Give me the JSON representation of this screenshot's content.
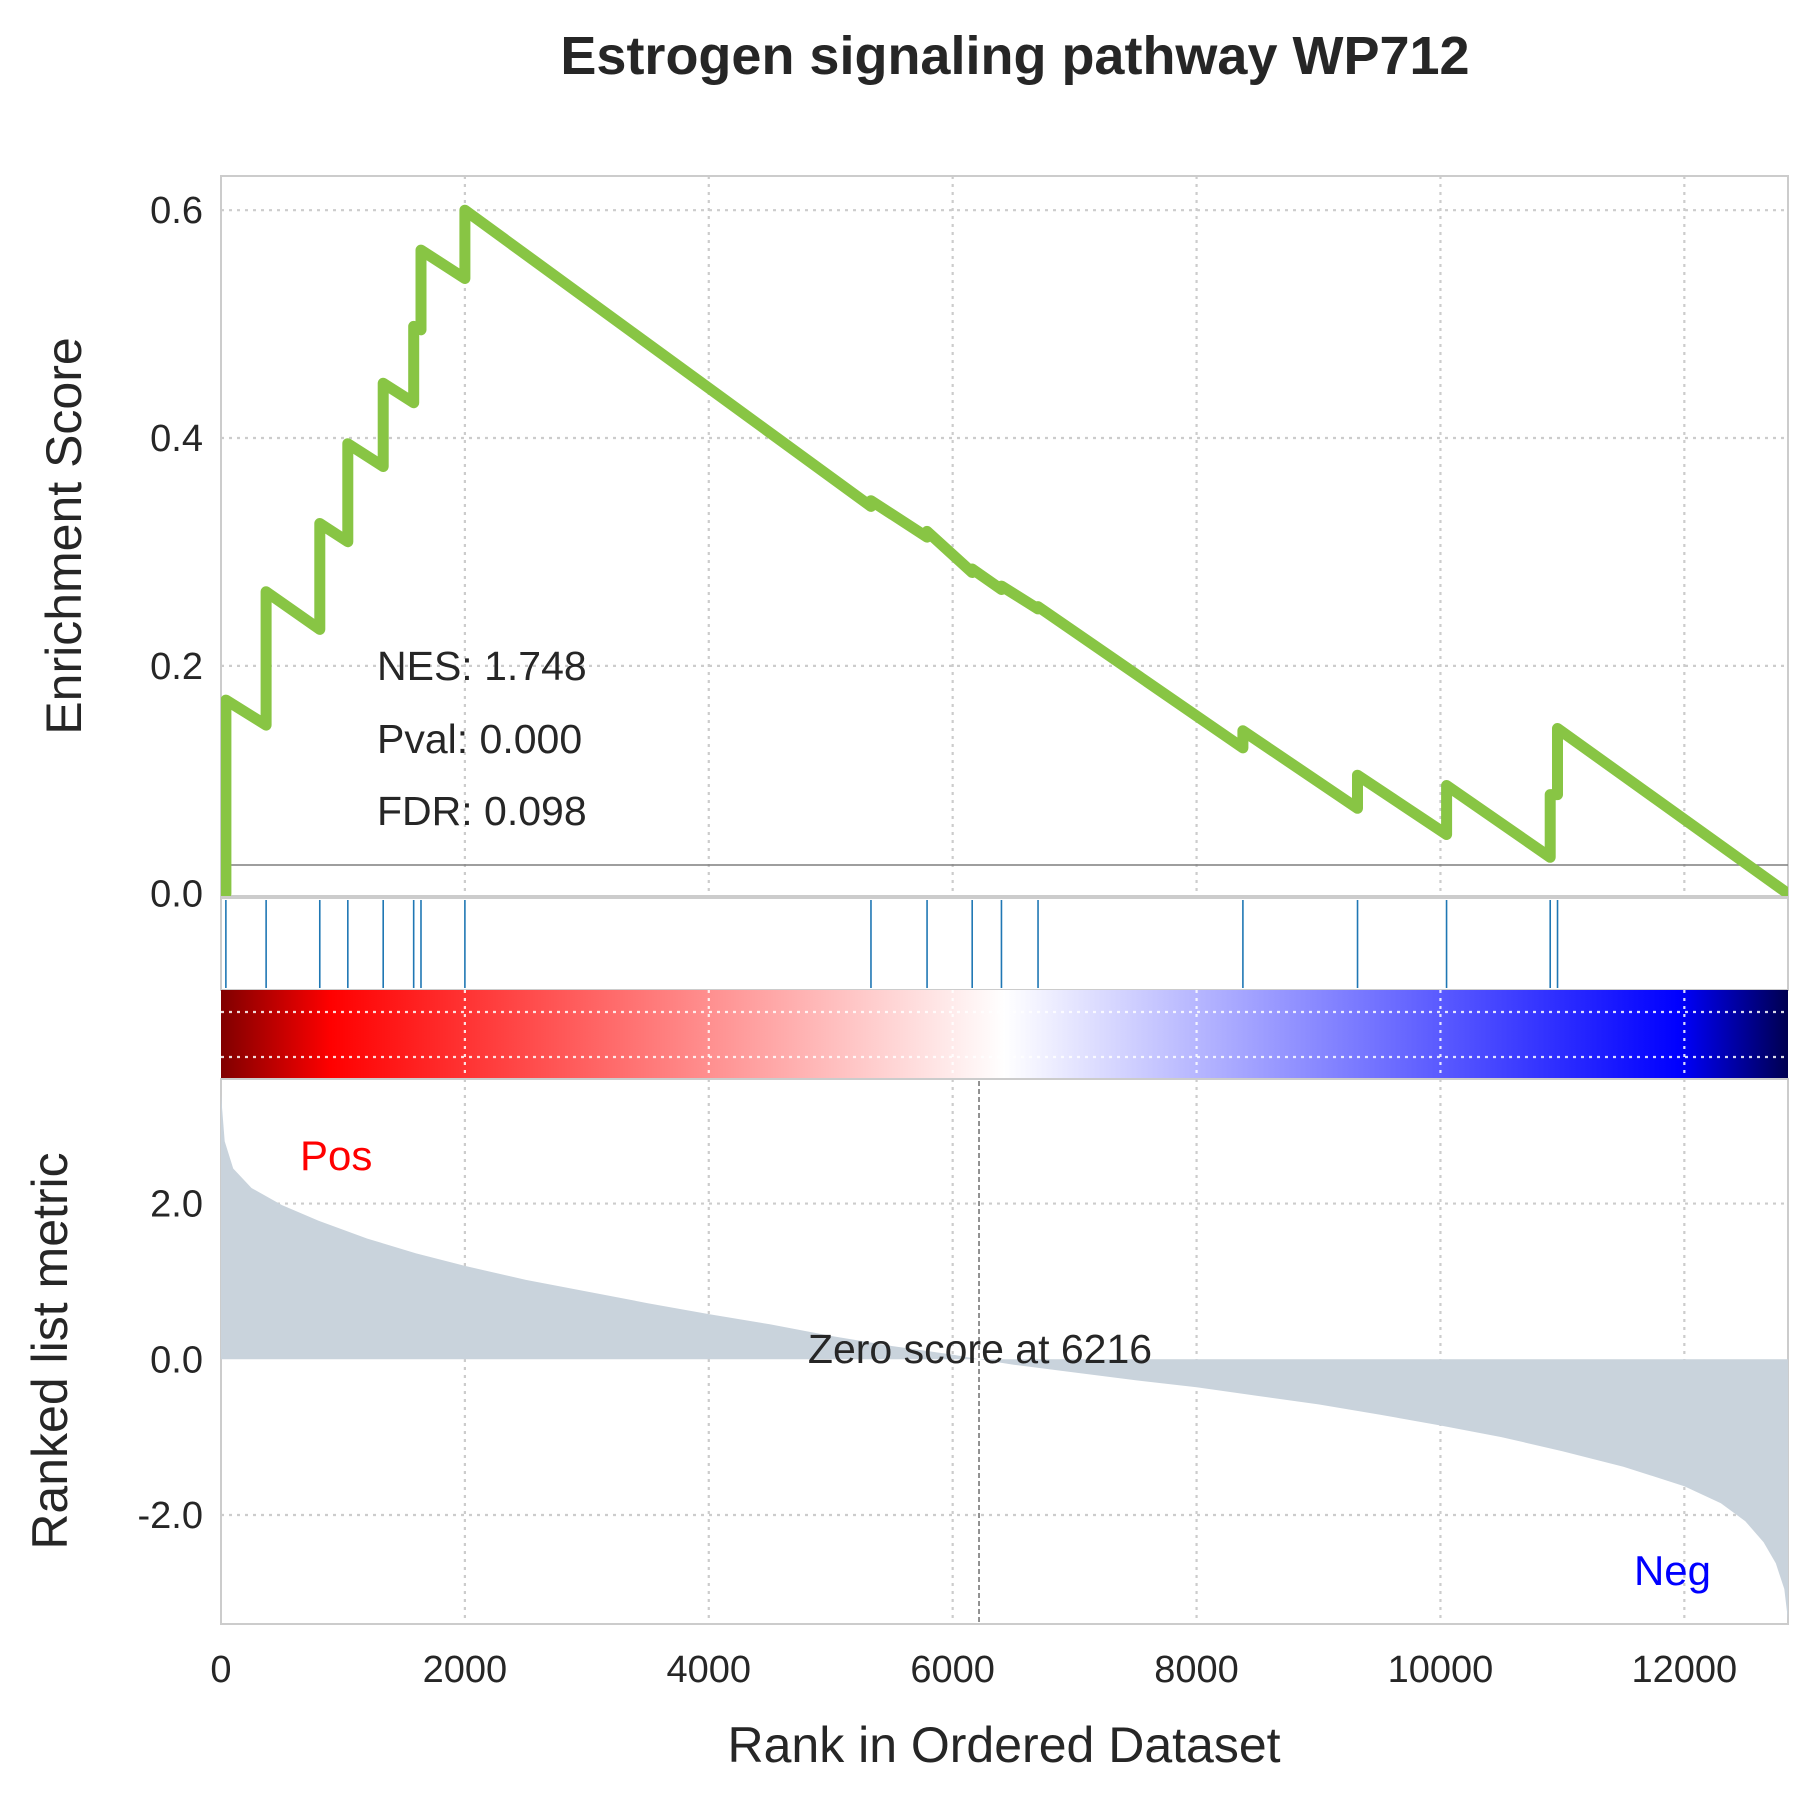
{
  "chart_data": {
    "type": "line",
    "title": "Estrogen signaling pathway WP712",
    "xlabel": "Rank in Ordered Dataset",
    "ylabel_top": "Enrichment Score",
    "ylabel_bottom": "Ranked list metric",
    "xlim": [
      0,
      12850
    ],
    "es_ylim": [
      -0.002,
      0.63
    ],
    "metric_ylim": [
      -3.4,
      3.6
    ],
    "x_ticks": [
      "0",
      "2000",
      "4000",
      "6000",
      "8000",
      "10000",
      "12000"
    ],
    "es_ticks": [
      "0.0",
      "0.2",
      "0.4",
      "0.6"
    ],
    "metric_ticks": [
      "2.0",
      "0.0",
      "-2.0"
    ],
    "grid": true,
    "es_color": "#88c544",
    "hit_color": "#1f77b4",
    "metric_fill_color": "#c9d3dc",
    "hits": [
      40,
      370,
      810,
      1040,
      1330,
      1580,
      1640,
      2000,
      5330,
      5790,
      6160,
      6400,
      6700,
      8380,
      9320,
      10050,
      10900,
      10960
    ],
    "enrichment_score": {
      "x": [
        0,
        40,
        40,
        370,
        370,
        810,
        810,
        1040,
        1040,
        1330,
        1330,
        1580,
        1580,
        1640,
        1640,
        2000,
        2000,
        5330,
        5330,
        5790,
        5790,
        6160,
        6160,
        6400,
        6400,
        6700,
        6700,
        8380,
        8380,
        9320,
        9320,
        10050,
        10050,
        10900,
        10900,
        10960,
        10960,
        12850
      ],
      "y": [
        0.0,
        0.0,
        0.17,
        0.148,
        0.265,
        0.232,
        0.325,
        0.309,
        0.395,
        0.375,
        0.448,
        0.431,
        0.498,
        0.495,
        0.565,
        0.54,
        0.6,
        0.34,
        0.345,
        0.313,
        0.318,
        0.282,
        0.285,
        0.267,
        0.27,
        0.25,
        0.252,
        0.128,
        0.143,
        0.075,
        0.104,
        0.052,
        0.095,
        0.032,
        0.087,
        0.087,
        0.145,
        0.0
      ]
    },
    "ranked_metric": {
      "x": [
        0,
        30,
        100,
        250,
        500,
        800,
        1200,
        1600,
        2000,
        2500,
        3000,
        3500,
        4000,
        4500,
        5000,
        5500,
        6000,
        6216,
        6500,
        7000,
        7500,
        8000,
        8500,
        9000,
        9500,
        10000,
        10500,
        11000,
        11500,
        12000,
        12300,
        12500,
        12650,
        12750,
        12820,
        12850
      ],
      "y": [
        3.4,
        2.8,
        2.45,
        2.2,
        1.98,
        1.78,
        1.55,
        1.36,
        1.2,
        1.02,
        0.87,
        0.72,
        0.58,
        0.45,
        0.3,
        0.17,
        0.06,
        0.0,
        -0.07,
        -0.17,
        -0.27,
        -0.36,
        -0.47,
        -0.58,
        -0.71,
        -0.85,
        -1.0,
        -1.18,
        -1.38,
        -1.63,
        -1.85,
        -2.08,
        -2.35,
        -2.62,
        -2.95,
        -3.35
      ]
    },
    "zero_score_rank": 6216,
    "annotations": {
      "nes": "NES: 1.748",
      "pval": "Pval: 0.000",
      "fdr": "FDR: 0.098",
      "zero_label": "Zero score at 6216",
      "pos_label": "Pos",
      "neg_label": "Neg"
    }
  }
}
